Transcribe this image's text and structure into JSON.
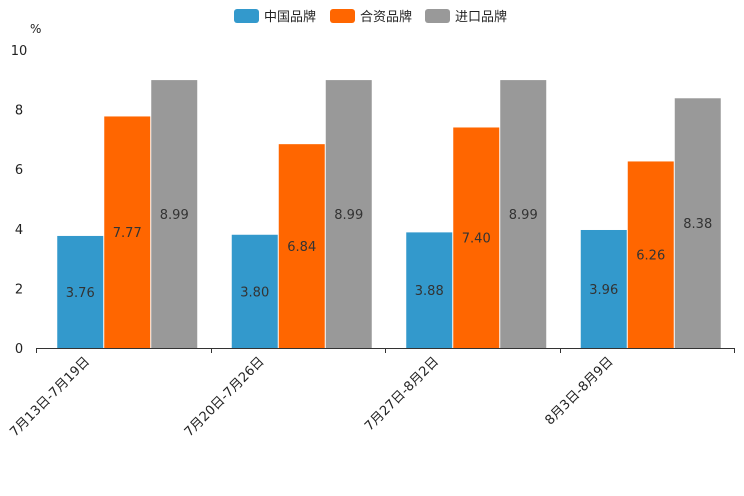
{
  "chart_data": {
    "type": "bar",
    "unit": "%",
    "categories": [
      "7月13日-7月19日",
      "7月20日-7月26日",
      "7月27日-8月2日",
      "8月3日-8月9日"
    ],
    "series": [
      {
        "name": "中国品牌",
        "color": "#3399cc",
        "values": [
          3.76,
          3.8,
          3.88,
          3.96
        ],
        "labels": [
          "3.76",
          "3.80",
          "3.88",
          "3.96"
        ]
      },
      {
        "name": "合资品牌",
        "color": "#ff6600",
        "values": [
          7.77,
          6.84,
          7.4,
          6.26
        ],
        "labels": [
          "7.77",
          "6.84",
          "7.40",
          "6.26"
        ]
      },
      {
        "name": "进口品牌",
        "color": "#999999",
        "values": [
          8.99,
          8.99,
          8.99,
          8.38
        ],
        "labels": [
          "8.99",
          "8.99",
          "8.99",
          "8.38"
        ]
      }
    ],
    "ylim": [
      0,
      10
    ],
    "yticks": [
      0,
      2,
      4,
      6,
      8,
      10
    ],
    "ytick_labels": [
      "0",
      "2",
      "4",
      "6",
      "8",
      "10"
    ],
    "legend_position": "top-center",
    "grid": false
  }
}
